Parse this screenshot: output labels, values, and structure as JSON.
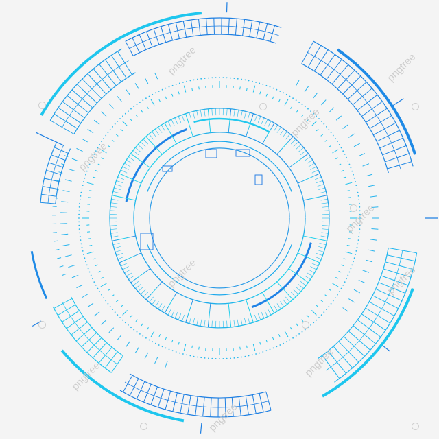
{
  "watermark": {
    "text": "pngtree",
    "color": "#c8c8c8"
  },
  "graphic": {
    "subject": "circular futuristic HUD ring",
    "colors": {
      "inner": "#18d0ea",
      "outer": "#2a80e6",
      "accent": "#1fb8f0",
      "background": "#f4f4f4"
    }
  }
}
